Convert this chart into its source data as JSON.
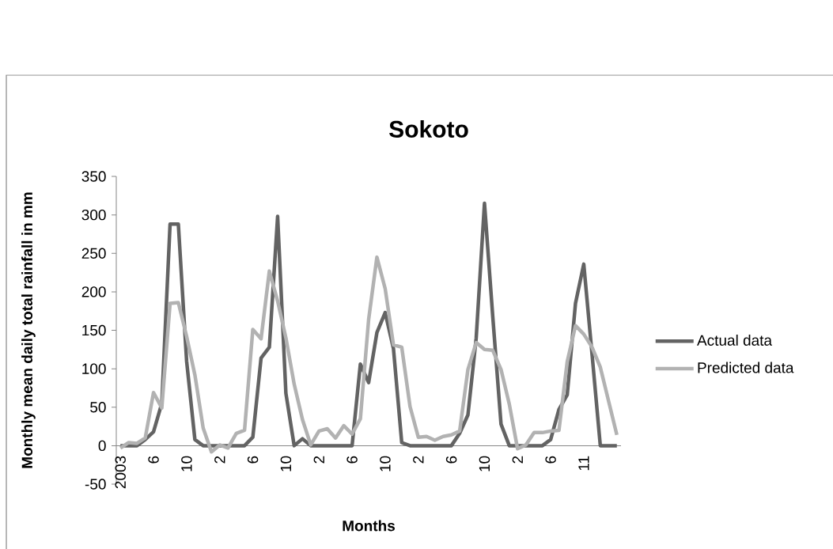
{
  "chart_data": {
    "type": "line",
    "title": "Sokoto",
    "xlabel": "Months",
    "ylabel": "Monthly mean daily total rainfall in mm",
    "categories": [
      "2003",
      null,
      null,
      null,
      "6",
      null,
      null,
      null,
      "10",
      null,
      null,
      null,
      "2",
      null,
      null,
      null,
      "6",
      null,
      null,
      null,
      "10",
      null,
      null,
      null,
      "2",
      null,
      null,
      null,
      "6",
      null,
      null,
      null,
      "10",
      null,
      null,
      null,
      "2",
      null,
      null,
      null,
      "6",
      null,
      null,
      null,
      "10",
      null,
      null,
      null,
      "2",
      null,
      null,
      null,
      "6",
      null,
      null,
      null,
      "11",
      null,
      null,
      null,
      null
    ],
    "series": [
      {
        "name": "Actual data",
        "color": "#636363",
        "values": [
          0,
          0,
          0,
          8,
          18,
          55,
          288,
          288,
          110,
          8,
          0,
          0,
          0,
          0,
          0,
          0,
          11,
          114,
          128,
          298,
          68,
          0,
          9,
          0,
          0,
          0,
          0,
          0,
          0,
          106,
          82,
          147,
          173,
          126,
          4,
          0,
          0,
          0,
          0,
          0,
          0,
          16,
          40,
          140,
          315,
          168,
          28,
          0,
          0,
          0,
          0,
          0,
          8,
          47,
          66,
          185,
          236,
          119,
          0,
          0,
          0
        ]
      },
      {
        "name": "Predicted data",
        "color": "#b2b2b2",
        "values": [
          -3,
          4,
          3,
          10,
          69,
          49,
          185,
          186,
          142,
          92,
          23,
          -8,
          1,
          -3,
          16,
          20,
          151,
          139,
          227,
          188,
          140,
          80,
          34,
          1,
          19,
          22,
          10,
          26,
          15,
          35,
          164,
          245,
          204,
          131,
          128,
          51,
          11,
          12,
          7,
          12,
          14,
          19,
          99,
          134,
          125,
          124,
          99,
          54,
          -4,
          1,
          17,
          17,
          19,
          20,
          109,
          156,
          145,
          128,
          102,
          58,
          14
        ]
      }
    ],
    "ylim": [
      -50,
      350
    ],
    "yticks": [
      -50,
      0,
      50,
      100,
      150,
      200,
      250,
      300,
      350
    ],
    "legend": "right"
  }
}
